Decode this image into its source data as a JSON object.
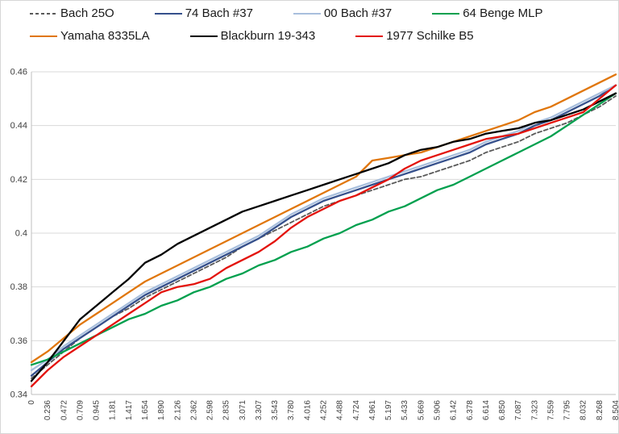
{
  "chart_data": {
    "type": "line",
    "title": "",
    "xlabel": "",
    "ylabel": "",
    "ylim": [
      0.34,
      0.46
    ],
    "grid": true,
    "legend_position": "top",
    "y_ticks": [
      0.34,
      0.36,
      0.38,
      0.4,
      0.42,
      0.44,
      0.46
    ],
    "y_tick_labels": [
      "0.34",
      "0.36",
      "0.38",
      "0.4",
      "0.42",
      "0.44",
      "0.46"
    ],
    "x": [
      0,
      0.236,
      0.472,
      0.709,
      0.945,
      1.181,
      1.417,
      1.654,
      1.89,
      2.126,
      2.362,
      2.598,
      2.835,
      3.071,
      3.307,
      3.543,
      3.78,
      4.016,
      4.252,
      4.488,
      4.724,
      4.961,
      5.197,
      5.433,
      5.669,
      5.906,
      6.142,
      6.378,
      6.614,
      6.85,
      7.087,
      7.323,
      7.559,
      7.795,
      8.032,
      8.268,
      8.504
    ],
    "x_labels": [
      "0",
      "0.236",
      "0.472",
      "0.709",
      "0.945",
      "1.181",
      "1.417",
      "1.654",
      "1.890",
      "2.126",
      "2.362",
      "2.598",
      "2.835",
      "3.071",
      "3.307",
      "3.543",
      "3.780",
      "4.016",
      "4.252",
      "4.488",
      "4.724",
      "4.961",
      "5.197",
      "5.433",
      "5.669",
      "5.906",
      "6.142",
      "6.378",
      "6.614",
      "6.850",
      "7.087",
      "7.323",
      "7.559",
      "7.795",
      "8.032",
      "8.268",
      "8.504"
    ],
    "colors": {
      "gridline": "#d9d9d9",
      "axis": "#bfbfbf",
      "tick_text": "#404040"
    },
    "series": [
      {
        "name": "Bach 25O",
        "color": "#595959",
        "dash": "dashed",
        "values": [
          0.346,
          0.351,
          0.356,
          0.361,
          0.365,
          0.369,
          0.372,
          0.376,
          0.379,
          0.382,
          0.385,
          0.388,
          0.391,
          0.395,
          0.398,
          0.401,
          0.404,
          0.407,
          0.41,
          0.412,
          0.414,
          0.416,
          0.418,
          0.42,
          0.421,
          0.423,
          0.425,
          0.427,
          0.43,
          0.432,
          0.434,
          0.437,
          0.439,
          0.441,
          0.444,
          0.447,
          0.451
        ]
      },
      {
        "name": "74 Bach #37",
        "color": "#35508c",
        "dash": "solid",
        "values": [
          0.347,
          0.352,
          0.357,
          0.361,
          0.365,
          0.369,
          0.373,
          0.377,
          0.38,
          0.383,
          0.386,
          0.389,
          0.392,
          0.395,
          0.398,
          0.402,
          0.406,
          0.409,
          0.412,
          0.414,
          0.416,
          0.418,
          0.42,
          0.422,
          0.424,
          0.426,
          0.428,
          0.43,
          0.433,
          0.435,
          0.437,
          0.44,
          0.442,
          0.445,
          0.448,
          0.451,
          0.455
        ]
      },
      {
        "name": "00 Bach #37",
        "color": "#a8bfdd",
        "dash": "solid",
        "values": [
          0.349,
          0.353,
          0.358,
          0.362,
          0.366,
          0.37,
          0.374,
          0.378,
          0.381,
          0.384,
          0.387,
          0.39,
          0.393,
          0.396,
          0.399,
          0.403,
          0.407,
          0.41,
          0.413,
          0.415,
          0.417,
          0.419,
          0.421,
          0.423,
          0.425,
          0.427,
          0.429,
          0.431,
          0.434,
          0.436,
          0.438,
          0.441,
          0.443,
          0.446,
          0.449,
          0.452,
          0.455
        ]
      },
      {
        "name": "64 Benge MLP",
        "color": "#00a04e",
        "dash": "solid",
        "values": [
          0.351,
          0.353,
          0.356,
          0.359,
          0.362,
          0.365,
          0.368,
          0.37,
          0.373,
          0.375,
          0.378,
          0.38,
          0.383,
          0.385,
          0.388,
          0.39,
          0.393,
          0.395,
          0.398,
          0.4,
          0.403,
          0.405,
          0.408,
          0.41,
          0.413,
          0.416,
          0.418,
          0.421,
          0.424,
          0.427,
          0.43,
          0.433,
          0.436,
          0.44,
          0.444,
          0.448,
          0.452
        ]
      },
      {
        "name": "Yamaha 8335LA",
        "color": "#e0760b",
        "dash": "solid",
        "values": [
          0.352,
          0.356,
          0.361,
          0.366,
          0.37,
          0.374,
          0.378,
          0.382,
          0.385,
          0.388,
          0.391,
          0.394,
          0.397,
          0.4,
          0.403,
          0.406,
          0.409,
          0.412,
          0.415,
          0.418,
          0.421,
          0.427,
          0.428,
          0.429,
          0.43,
          0.432,
          0.434,
          0.436,
          0.438,
          0.44,
          0.442,
          0.445,
          0.447,
          0.45,
          0.453,
          0.456,
          0.459
        ]
      },
      {
        "name": "Blackburn 19-343",
        "color": "#000000",
        "dash": "solid",
        "values": [
          0.345,
          0.352,
          0.36,
          0.368,
          0.373,
          0.378,
          0.383,
          0.389,
          0.392,
          0.396,
          0.399,
          0.402,
          0.405,
          0.408,
          0.41,
          0.412,
          0.414,
          0.416,
          0.418,
          0.42,
          0.422,
          0.424,
          0.426,
          0.429,
          0.431,
          0.432,
          0.434,
          0.435,
          0.437,
          0.438,
          0.439,
          0.441,
          0.442,
          0.444,
          0.446,
          0.449,
          0.452
        ]
      },
      {
        "name": "1977 Schilke B5",
        "color": "#e3120b",
        "dash": "solid",
        "values": [
          0.343,
          0.349,
          0.354,
          0.358,
          0.362,
          0.366,
          0.37,
          0.374,
          0.378,
          0.38,
          0.381,
          0.383,
          0.387,
          0.39,
          0.393,
          0.397,
          0.402,
          0.406,
          0.409,
          0.412,
          0.414,
          0.417,
          0.42,
          0.424,
          0.427,
          0.429,
          0.431,
          0.433,
          0.435,
          0.436,
          0.437,
          0.439,
          0.441,
          0.443,
          0.445,
          0.45,
          0.455
        ]
      }
    ]
  }
}
